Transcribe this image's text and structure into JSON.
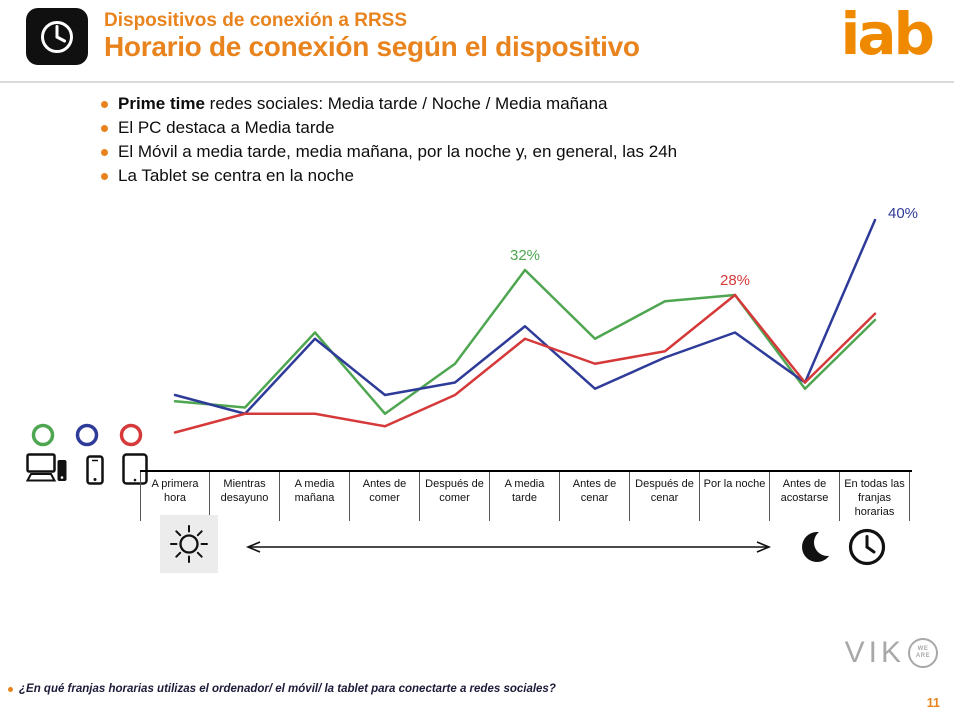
{
  "colors": {
    "accent": "#E8831D",
    "iab": "#EF8A00",
    "green": "#4FA651",
    "blue": "#2E3B99",
    "red": "#D6393A"
  },
  "header": {
    "kicker": "Dispositivos de conexión a RRSS",
    "title": "Horario de conexión según el dispositivo",
    "logo_text": "iab"
  },
  "bullets": [
    {
      "lead": "Prime time",
      "rest": " redes sociales: Media tarde / Noche / Media mañana"
    },
    {
      "lead": "",
      "rest": "El PC destaca a Media tarde"
    },
    {
      "lead": "",
      "rest": "El Móvil a media tarde, media mañana, por la noche y, en general, las 24h"
    },
    {
      "lead": "",
      "rest": "La Tablet se centra en la noche"
    }
  ],
  "chart_data": {
    "type": "line",
    "title": "Horario de conexión según el dispositivo",
    "categories": [
      "A primera hora",
      "Mientras desayuno",
      "A media mañana",
      "Antes de comer",
      "Después de comer",
      "A media tarde",
      "Antes de cenar",
      "Después de cenar",
      "Por la noche",
      "Antes de acostarse",
      "En todas las franjas horarias"
    ],
    "series": [
      {
        "key": "ordenador",
        "name": "PC / Ordenador",
        "color": "#4FA651",
        "values": [
          11,
          10,
          22,
          9,
          17,
          32,
          21,
          27,
          28,
          13,
          24
        ]
      },
      {
        "key": "movil",
        "name": "Móvil",
        "color": "#2E3B99",
        "values": [
          12,
          9,
          21,
          12,
          14,
          23,
          13,
          18,
          22,
          14,
          40
        ]
      },
      {
        "key": "tablet",
        "name": "Tablet",
        "color": "#D6393A",
        "values": [
          6,
          9,
          9,
          7,
          12,
          21,
          17,
          19,
          28,
          14,
          25
        ]
      }
    ],
    "point_labels": [
      {
        "series": 0,
        "index": 5,
        "text": "32%"
      },
      {
        "series": 2,
        "index": 8,
        "text": "28%"
      },
      {
        "series": 1,
        "index": 10,
        "text": "40%"
      }
    ],
    "ylim": [
      0,
      44
    ],
    "grid": false,
    "legend_position": "left-icons",
    "xlabel": "",
    "ylabel": ""
  },
  "footer": {
    "viko_text": "VIK",
    "viko_tagline": "WE ARE",
    "footnote": "¿En qué franjas horarias utilizas el ordenador/ el móvil/ la tablet para conectarte a redes sociales?",
    "page_number": "11"
  }
}
